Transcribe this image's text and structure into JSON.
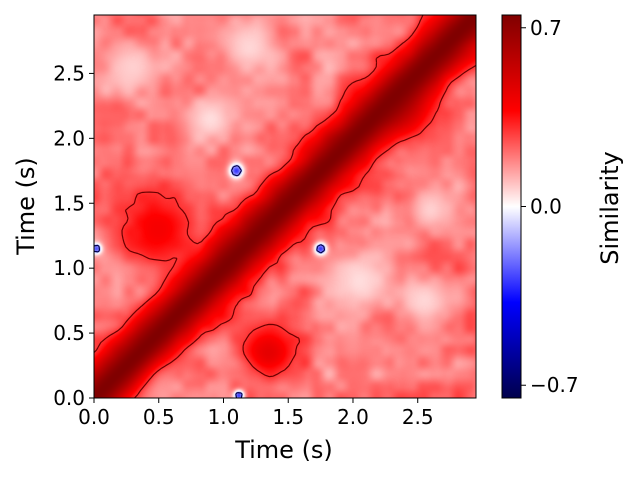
{
  "chart_data": {
    "type": "heatmap",
    "description_kind": "self-similarity matrix",
    "xlabel": "Time (s)",
    "ylabel": "Time (s)",
    "xlim": [
      0.0,
      2.95
    ],
    "ylim": [
      0.0,
      2.95
    ],
    "xticks": [
      {
        "value": 0.0,
        "label": "0.0"
      },
      {
        "value": 0.5,
        "label": "0.5"
      },
      {
        "value": 1.0,
        "label": "1.0"
      },
      {
        "value": 1.5,
        "label": "1.5"
      },
      {
        "value": 2.0,
        "label": "2.0"
      },
      {
        "value": 2.5,
        "label": "2.5"
      }
    ],
    "yticks": [
      {
        "value": 0.0,
        "label": "0.0"
      },
      {
        "value": 0.5,
        "label": "0.5"
      },
      {
        "value": 1.0,
        "label": "1.0"
      },
      {
        "value": 1.5,
        "label": "1.5"
      },
      {
        "value": 2.0,
        "label": "2.0"
      },
      {
        "value": 2.5,
        "label": "2.5"
      }
    ],
    "colorbar": {
      "label": "Similarity",
      "colormap": "seismic",
      "vmin": -0.75,
      "vmax": 0.75,
      "ticks": [
        {
          "value": 0.7,
          "label": "0.7"
        },
        {
          "value": 0.0,
          "label": "0.0"
        },
        {
          "value": -0.7,
          "label": "−0.7"
        }
      ]
    },
    "diagonal_value": 0.75,
    "diagonal_band_width_s": 0.3,
    "background_value": 0.2,
    "contour_levels": [
      {
        "value": 0.3,
        "color": "#6b0000"
      },
      {
        "value": -0.1,
        "color": "#000050"
      }
    ],
    "blobs": [
      {
        "center": [
          2.05,
          0.9
        ],
        "radius": 0.35,
        "value": 0.05
      },
      {
        "center": [
          2.55,
          0.75
        ],
        "radius": 0.3,
        "value": 0.06
      },
      {
        "center": [
          2.6,
          1.45
        ],
        "radius": 0.28,
        "value": 0.07
      },
      {
        "center": [
          0.9,
          2.15
        ],
        "radius": 0.25,
        "value": 0.05
      },
      {
        "center": [
          0.3,
          2.55
        ],
        "radius": 0.3,
        "value": 0.07
      },
      {
        "center": [
          0.45,
          0.2
        ],
        "radius": 0.3,
        "value": 0.06
      },
      {
        "center": [
          1.2,
          2.7
        ],
        "radius": 0.35,
        "value": 0.06
      },
      {
        "center": [
          1.1,
          1.75
        ],
        "radius": 0.08,
        "value": -0.3
      },
      {
        "center": [
          1.75,
          1.15
        ],
        "radius": 0.07,
        "value": -0.3
      },
      {
        "center": [
          0.02,
          1.15
        ],
        "radius": 0.06,
        "value": -0.3
      },
      {
        "center": [
          1.12,
          0.02
        ],
        "radius": 0.06,
        "value": -0.3
      },
      {
        "center": [
          0.5,
          1.3
        ],
        "radius": 0.45,
        "value": 0.4
      },
      {
        "center": [
          1.35,
          0.35
        ],
        "radius": 0.3,
        "value": 0.45
      },
      {
        "center": [
          2.4,
          2.2
        ],
        "radius": 0.35,
        "value": 0.4
      }
    ]
  }
}
